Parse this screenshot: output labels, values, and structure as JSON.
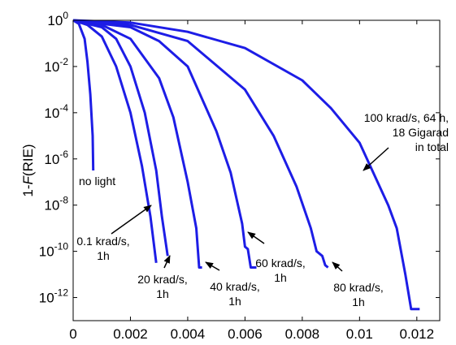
{
  "chart_data": {
    "type": "line",
    "title": "",
    "xlabel": "",
    "ylabel_prefix": "1-",
    "ylabel_italic": "F",
    "ylabel_suffix": "(RIE)",
    "xlim": [
      0,
      0.0128
    ],
    "ylim_exponent": [
      -13,
      0
    ],
    "y_scale": "log",
    "grid": false,
    "line_color": "#1d1de6",
    "x_ticks": [
      {
        "v": 0,
        "label": "0"
      },
      {
        "v": 0.002,
        "label": "0.002"
      },
      {
        "v": 0.004,
        "label": "0.004"
      },
      {
        "v": 0.006,
        "label": "0.006"
      },
      {
        "v": 0.008,
        "label": "0.008"
      },
      {
        "v": 0.01,
        "label": "0.01"
      },
      {
        "v": 0.012,
        "label": "0.012"
      }
    ],
    "y_ticks": [
      {
        "exp": 0,
        "base": "10",
        "sup": "0"
      },
      {
        "exp": -2,
        "base": "10",
        "sup": "-2"
      },
      {
        "exp": -4,
        "base": "10",
        "sup": "-4"
      },
      {
        "exp": -6,
        "base": "10",
        "sup": "-6"
      },
      {
        "exp": -8,
        "base": "10",
        "sup": "-8"
      },
      {
        "exp": -10,
        "base": "10",
        "sup": "-10"
      },
      {
        "exp": -12,
        "base": "10",
        "sup": "-12"
      }
    ],
    "series": [
      {
        "name": "no light",
        "points": [
          [
            0,
            0
          ],
          [
            0.0002,
            -0.15
          ],
          [
            0.0004,
            -0.8
          ],
          [
            0.0005,
            -1.8
          ],
          [
            0.0006,
            -3.2
          ],
          [
            0.00068,
            -5.0
          ],
          [
            0.0007,
            -6.5
          ]
        ]
      },
      {
        "name": "0.1 krad/s, 1h",
        "points": [
          [
            0,
            0
          ],
          [
            0.0005,
            -0.2
          ],
          [
            0.001,
            -0.7
          ],
          [
            0.0015,
            -2.0
          ],
          [
            0.002,
            -4.0
          ],
          [
            0.0024,
            -6.3
          ],
          [
            0.0027,
            -8.5
          ],
          [
            0.0029,
            -10.5
          ]
        ]
      },
      {
        "name": "20 krad/s, 1h",
        "points": [
          [
            0,
            0
          ],
          [
            0.001,
            -0.3
          ],
          [
            0.0015,
            -0.8
          ],
          [
            0.002,
            -2.0
          ],
          [
            0.0025,
            -4.0
          ],
          [
            0.0029,
            -6.5
          ],
          [
            0.0031,
            -8.5
          ],
          [
            0.0033,
            -10.2
          ]
        ]
      },
      {
        "name": "40 krad/s, 1h",
        "points": [
          [
            0,
            0
          ],
          [
            0.001,
            -0.2
          ],
          [
            0.002,
            -0.8
          ],
          [
            0.003,
            -2.5
          ],
          [
            0.0035,
            -4.2
          ],
          [
            0.004,
            -7.0
          ],
          [
            0.0043,
            -9.0
          ],
          [
            0.0044,
            -10.7
          ],
          [
            0.0045,
            -10.7
          ]
        ]
      },
      {
        "name": "60 krad/s, 1h",
        "points": [
          [
            0,
            0
          ],
          [
            0.002,
            -0.3
          ],
          [
            0.003,
            -0.9
          ],
          [
            0.004,
            -2.0
          ],
          [
            0.005,
            -4.8
          ],
          [
            0.0055,
            -6.6
          ],
          [
            0.0059,
            -8.8
          ],
          [
            0.006,
            -9.8
          ],
          [
            0.0061,
            -9.9
          ],
          [
            0.0062,
            -10.7
          ],
          [
            0.0064,
            -10.7
          ]
        ]
      },
      {
        "name": "80 krad/s, 1h",
        "points": [
          [
            0,
            0
          ],
          [
            0.002,
            -0.2
          ],
          [
            0.004,
            -0.9
          ],
          [
            0.006,
            -3.0
          ],
          [
            0.007,
            -5.0
          ],
          [
            0.0078,
            -7.2
          ],
          [
            0.0083,
            -9.0
          ],
          [
            0.0085,
            -10.0
          ],
          [
            0.0087,
            -10.2
          ],
          [
            0.0088,
            -10.6
          ],
          [
            0.0089,
            -10.7
          ]
        ]
      },
      {
        "name": "100 krad/s, 64 h, 18 Gigarad in total",
        "points": [
          [
            0,
            0
          ],
          [
            0.002,
            -0.1
          ],
          [
            0.004,
            -0.5
          ],
          [
            0.006,
            -1.2
          ],
          [
            0.008,
            -2.6
          ],
          [
            0.009,
            -3.8
          ],
          [
            0.01,
            -5.3
          ],
          [
            0.011,
            -8.0
          ],
          [
            0.0113,
            -9.0
          ],
          [
            0.0116,
            -11.0
          ],
          [
            0.0118,
            -12.5
          ],
          [
            0.0121,
            -12.5
          ]
        ]
      }
    ],
    "annotations": [
      {
        "lines": [
          "100 krad/s, 64 h,",
          "18 Gigarad",
          "in total"
        ],
        "align": "end"
      },
      {
        "lines": [
          "no light"
        ],
        "align": "start"
      },
      {
        "lines": [
          "0.1 krad/s,",
          "1h"
        ],
        "align": "middle"
      },
      {
        "lines": [
          "20 krad/s,",
          "1h"
        ],
        "align": "middle"
      },
      {
        "lines": [
          "40 krad/s,",
          "1h"
        ],
        "align": "middle"
      },
      {
        "lines": [
          "60 krad/s,",
          "1h"
        ],
        "align": "middle"
      },
      {
        "lines": [
          "80 krad/s,",
          "1h"
        ],
        "align": "middle"
      }
    ]
  }
}
